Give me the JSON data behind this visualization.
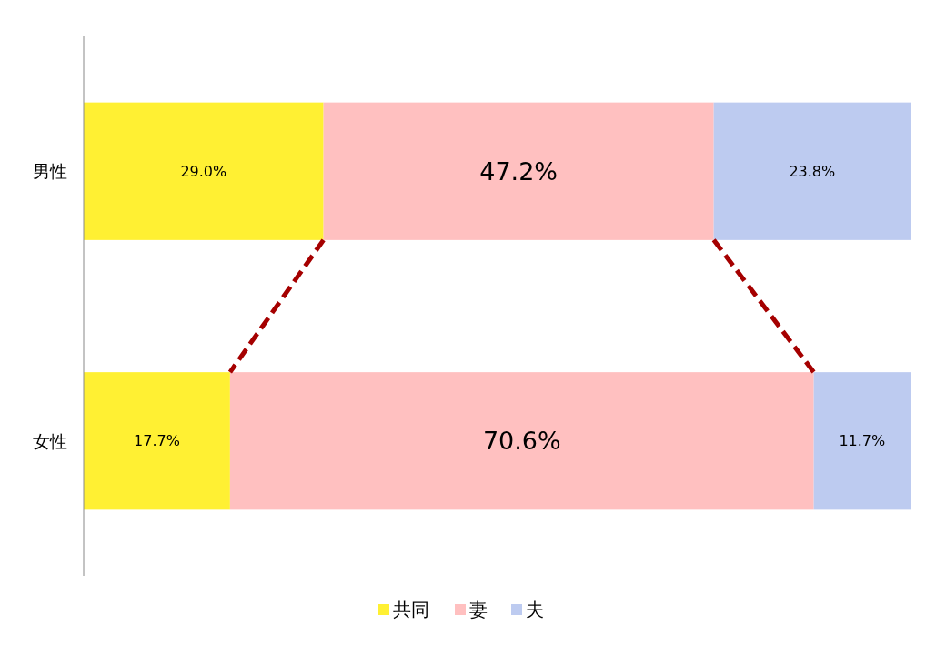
{
  "chart_data": {
    "type": "bar",
    "orientation": "horizontal",
    "stacked": true,
    "categories": [
      "男性",
      "女性"
    ],
    "xlim": [
      0,
      100
    ],
    "legend": "bottom",
    "series": [
      {
        "name": "共同",
        "color": "#fff033",
        "values": [
          29.0,
          17.7
        ],
        "value_labels": [
          "29.0%",
          "17.7%"
        ]
      },
      {
        "name": "妻",
        "color": "#ffc0c0",
        "values": [
          47.2,
          70.6
        ],
        "value_labels": [
          "47.2%",
          "70.6%"
        ]
      },
      {
        "name": "夫",
        "color": "#bdcbf0",
        "values": [
          23.8,
          11.7
        ],
        "value_labels": [
          "23.8%",
          "11.7%"
        ]
      }
    ]
  }
}
